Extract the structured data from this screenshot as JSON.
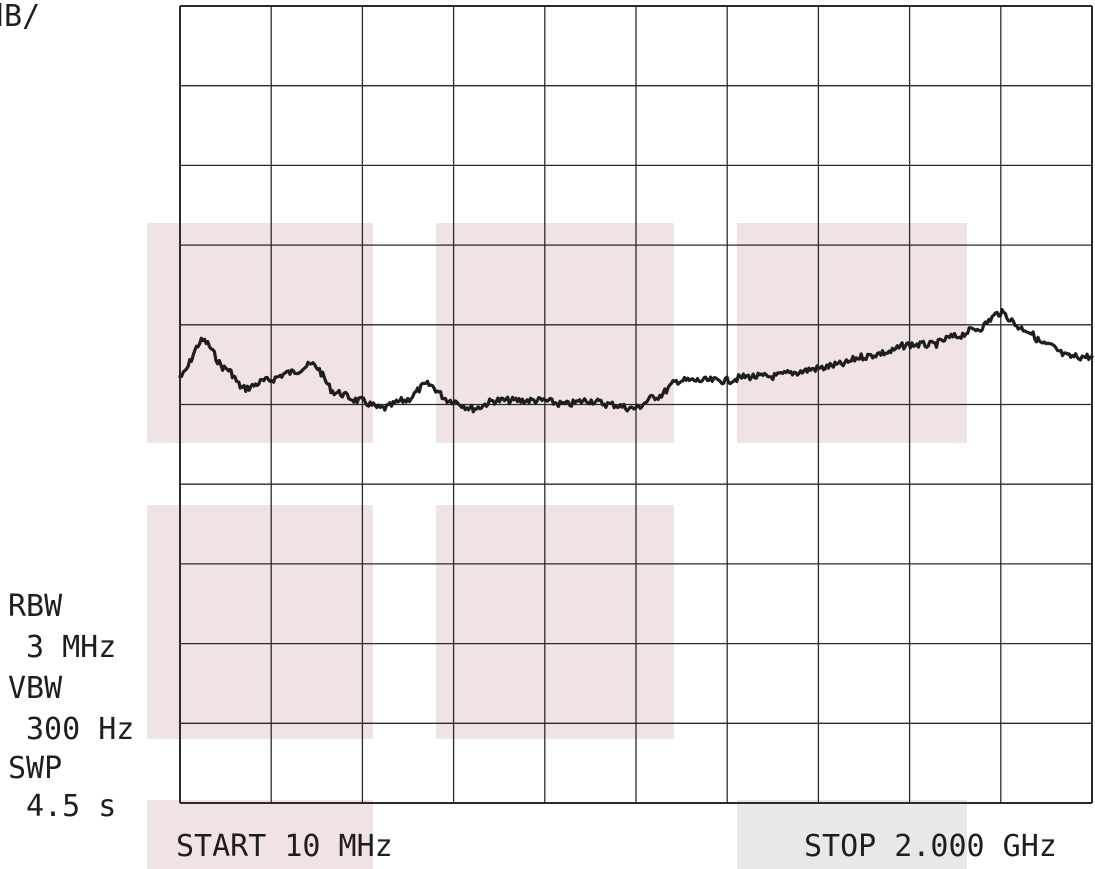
{
  "chart_data": {
    "type": "line",
    "title": "",
    "xlabel": "",
    "ylabel": "",
    "scale_label": "dB/",
    "settings": [
      {
        "name": "RBW",
        "value": "3 MHz"
      },
      {
        "name": "VBW",
        "value": "300 Hz"
      },
      {
        "name": "SWP",
        "value": "4.5 s"
      }
    ],
    "x_start_label": "START 10 MHz",
    "x_stop_label": "STOP 2.000 GHz",
    "xlim": [
      10,
      2000
    ],
    "x_unit": "MHz",
    "ylim": [
      0,
      10
    ],
    "grid": true,
    "grid_divisions": {
      "x": 10,
      "y": 10
    },
    "series": [
      {
        "values_x": [
          10,
          60,
          110,
          150,
          200,
          250,
          300,
          350,
          400,
          450,
          500,
          550,
          600,
          650,
          700,
          750,
          800,
          850,
          900,
          950,
          1000,
          1050,
          1100,
          1150,
          1200,
          1250,
          1300,
          1350,
          1400,
          1450,
          1500,
          1550,
          1600,
          1650,
          1700,
          1750,
          1800,
          1850,
          1900,
          1950,
          2000
        ],
        "values_y": [
          5.35,
          5.8,
          5.45,
          5.2,
          5.3,
          5.4,
          5.5,
          5.15,
          5.05,
          4.95,
          5.05,
          5.25,
          5.05,
          4.95,
          5.05,
          5.05,
          5.05,
          5.0,
          5.05,
          5.0,
          4.95,
          5.1,
          5.3,
          5.3,
          5.3,
          5.35,
          5.35,
          5.4,
          5.45,
          5.5,
          5.6,
          5.65,
          5.75,
          5.75,
          5.85,
          5.95,
          6.15,
          5.95,
          5.75,
          5.6,
          5.6
        ]
      }
    ],
    "colors": {
      "trace": "#1e1e1e",
      "grid": "#2a2a2a",
      "highlight": "#f0e3e3",
      "highlight_gray": "#e8e8e8"
    }
  }
}
